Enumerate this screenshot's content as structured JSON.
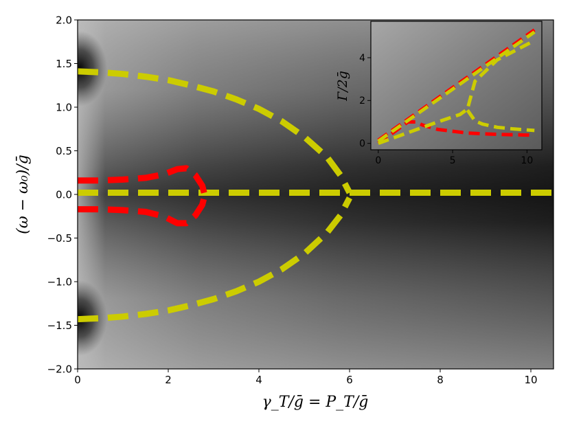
{
  "chart_data": [
    {
      "type": "line",
      "panel": "main",
      "xlabel": "γ_T/ḡ = P_T/ḡ",
      "ylabel": "(ω − ω₀)/ḡ",
      "xlim": [
        0,
        10.5
      ],
      "ylim": [
        -2.0,
        2.0
      ],
      "xticks": [
        0,
        2,
        4,
        6,
        8,
        10
      ],
      "yticks": [
        -2.0,
        -1.5,
        -1.0,
        -0.5,
        0.0,
        0.5,
        1.0,
        1.5,
        2.0
      ],
      "xtick_labels": [
        "0",
        "2",
        "4",
        "6",
        "8",
        "10"
      ],
      "ytick_labels": [
        "−2.0",
        "−1.5",
        "−1.0",
        "−0.5",
        "0.0",
        "0.5",
        "1.0",
        "1.5",
        "2.0"
      ],
      "background": "grayscale density map (dark near peaks at ±1.41 for small x, dark band around 0 for large x)",
      "grid": false,
      "series": [
        {
          "color": "#cccc00",
          "style": "dashed",
          "x": [
            0,
            0.5,
            1,
            1.5,
            2,
            2.5,
            3,
            3.5,
            4,
            4.5,
            5,
            5.5,
            5.8,
            6.0
          ],
          "y": [
            1.41,
            1.4,
            1.38,
            1.35,
            1.31,
            1.25,
            1.18,
            1.09,
            0.98,
            0.84,
            0.66,
            0.43,
            0.22,
            0.02
          ]
        },
        {
          "color": "#cccc00",
          "style": "dashed",
          "x": [
            0,
            0.5,
            1,
            1.5,
            2,
            2.5,
            3,
            3.5,
            4,
            4.5,
            5,
            5.5,
            5.8,
            6.0
          ],
          "y": [
            -1.43,
            -1.42,
            -1.4,
            -1.37,
            -1.33,
            -1.27,
            -1.2,
            -1.11,
            -1.0,
            -0.86,
            -0.68,
            -0.44,
            -0.24,
            -0.04
          ]
        },
        {
          "color": "#cccc00",
          "style": "dashed",
          "x": [
            0,
            10.5
          ],
          "y": [
            0.02,
            0.02
          ]
        },
        {
          "color": "#ff0000",
          "style": "dashed",
          "x": [
            0,
            0.5,
            1,
            1.5,
            1.9,
            2.2,
            2.4,
            2.6,
            2.75,
            2.8
          ],
          "y": [
            0.16,
            0.16,
            0.17,
            0.19,
            0.23,
            0.29,
            0.3,
            0.22,
            0.1,
            0.0
          ]
        },
        {
          "color": "#ff0000",
          "style": "dashed",
          "x": [
            0,
            0.5,
            1,
            1.5,
            1.9,
            2.2,
            2.4,
            2.6,
            2.75,
            2.8
          ],
          "y": [
            -0.17,
            -0.17,
            -0.18,
            -0.2,
            -0.25,
            -0.33,
            -0.33,
            -0.24,
            -0.12,
            -0.02
          ]
        }
      ]
    },
    {
      "type": "line",
      "panel": "inset",
      "xlabel": "",
      "ylabel": "Γ/2ḡ",
      "xlim": [
        -0.5,
        11
      ],
      "ylim": [
        -0.3,
        5.7
      ],
      "xticks": [
        0,
        5,
        10
      ],
      "yticks": [
        0,
        2,
        4
      ],
      "xtick_labels": [
        "0",
        "5",
        "10"
      ],
      "ytick_labels": [
        "0",
        "2",
        "4"
      ],
      "grid": false,
      "series": [
        {
          "color": "#ff0000",
          "style": "dashed",
          "x": [
            0,
            10.5
          ],
          "y": [
            0.15,
            5.3
          ]
        },
        {
          "color": "#ff0000",
          "style": "dashed",
          "x": [
            0,
            1,
            2,
            2.5,
            3,
            4,
            6,
            8,
            10.5
          ],
          "y": [
            0.0,
            0.5,
            1.0,
            1.0,
            0.85,
            0.65,
            0.48,
            0.42,
            0.38
          ]
        },
        {
          "color": "#cccc00",
          "style": "dashed",
          "x": [
            0,
            10.5
          ],
          "y": [
            0.1,
            5.2
          ]
        },
        {
          "color": "#cccc00",
          "style": "dashed",
          "x": [
            0,
            2,
            4,
            5.5,
            6.0,
            6.5,
            8,
            10.5
          ],
          "y": [
            0.0,
            0.5,
            1.0,
            1.35,
            1.6,
            2.9,
            3.9,
            4.8
          ]
        },
        {
          "color": "#cccc00",
          "style": "dashed",
          "x": [
            6.0,
            6.5,
            7,
            8,
            9,
            10.5
          ],
          "y": [
            1.55,
            1.05,
            0.9,
            0.75,
            0.68,
            0.6
          ]
        }
      ]
    }
  ]
}
